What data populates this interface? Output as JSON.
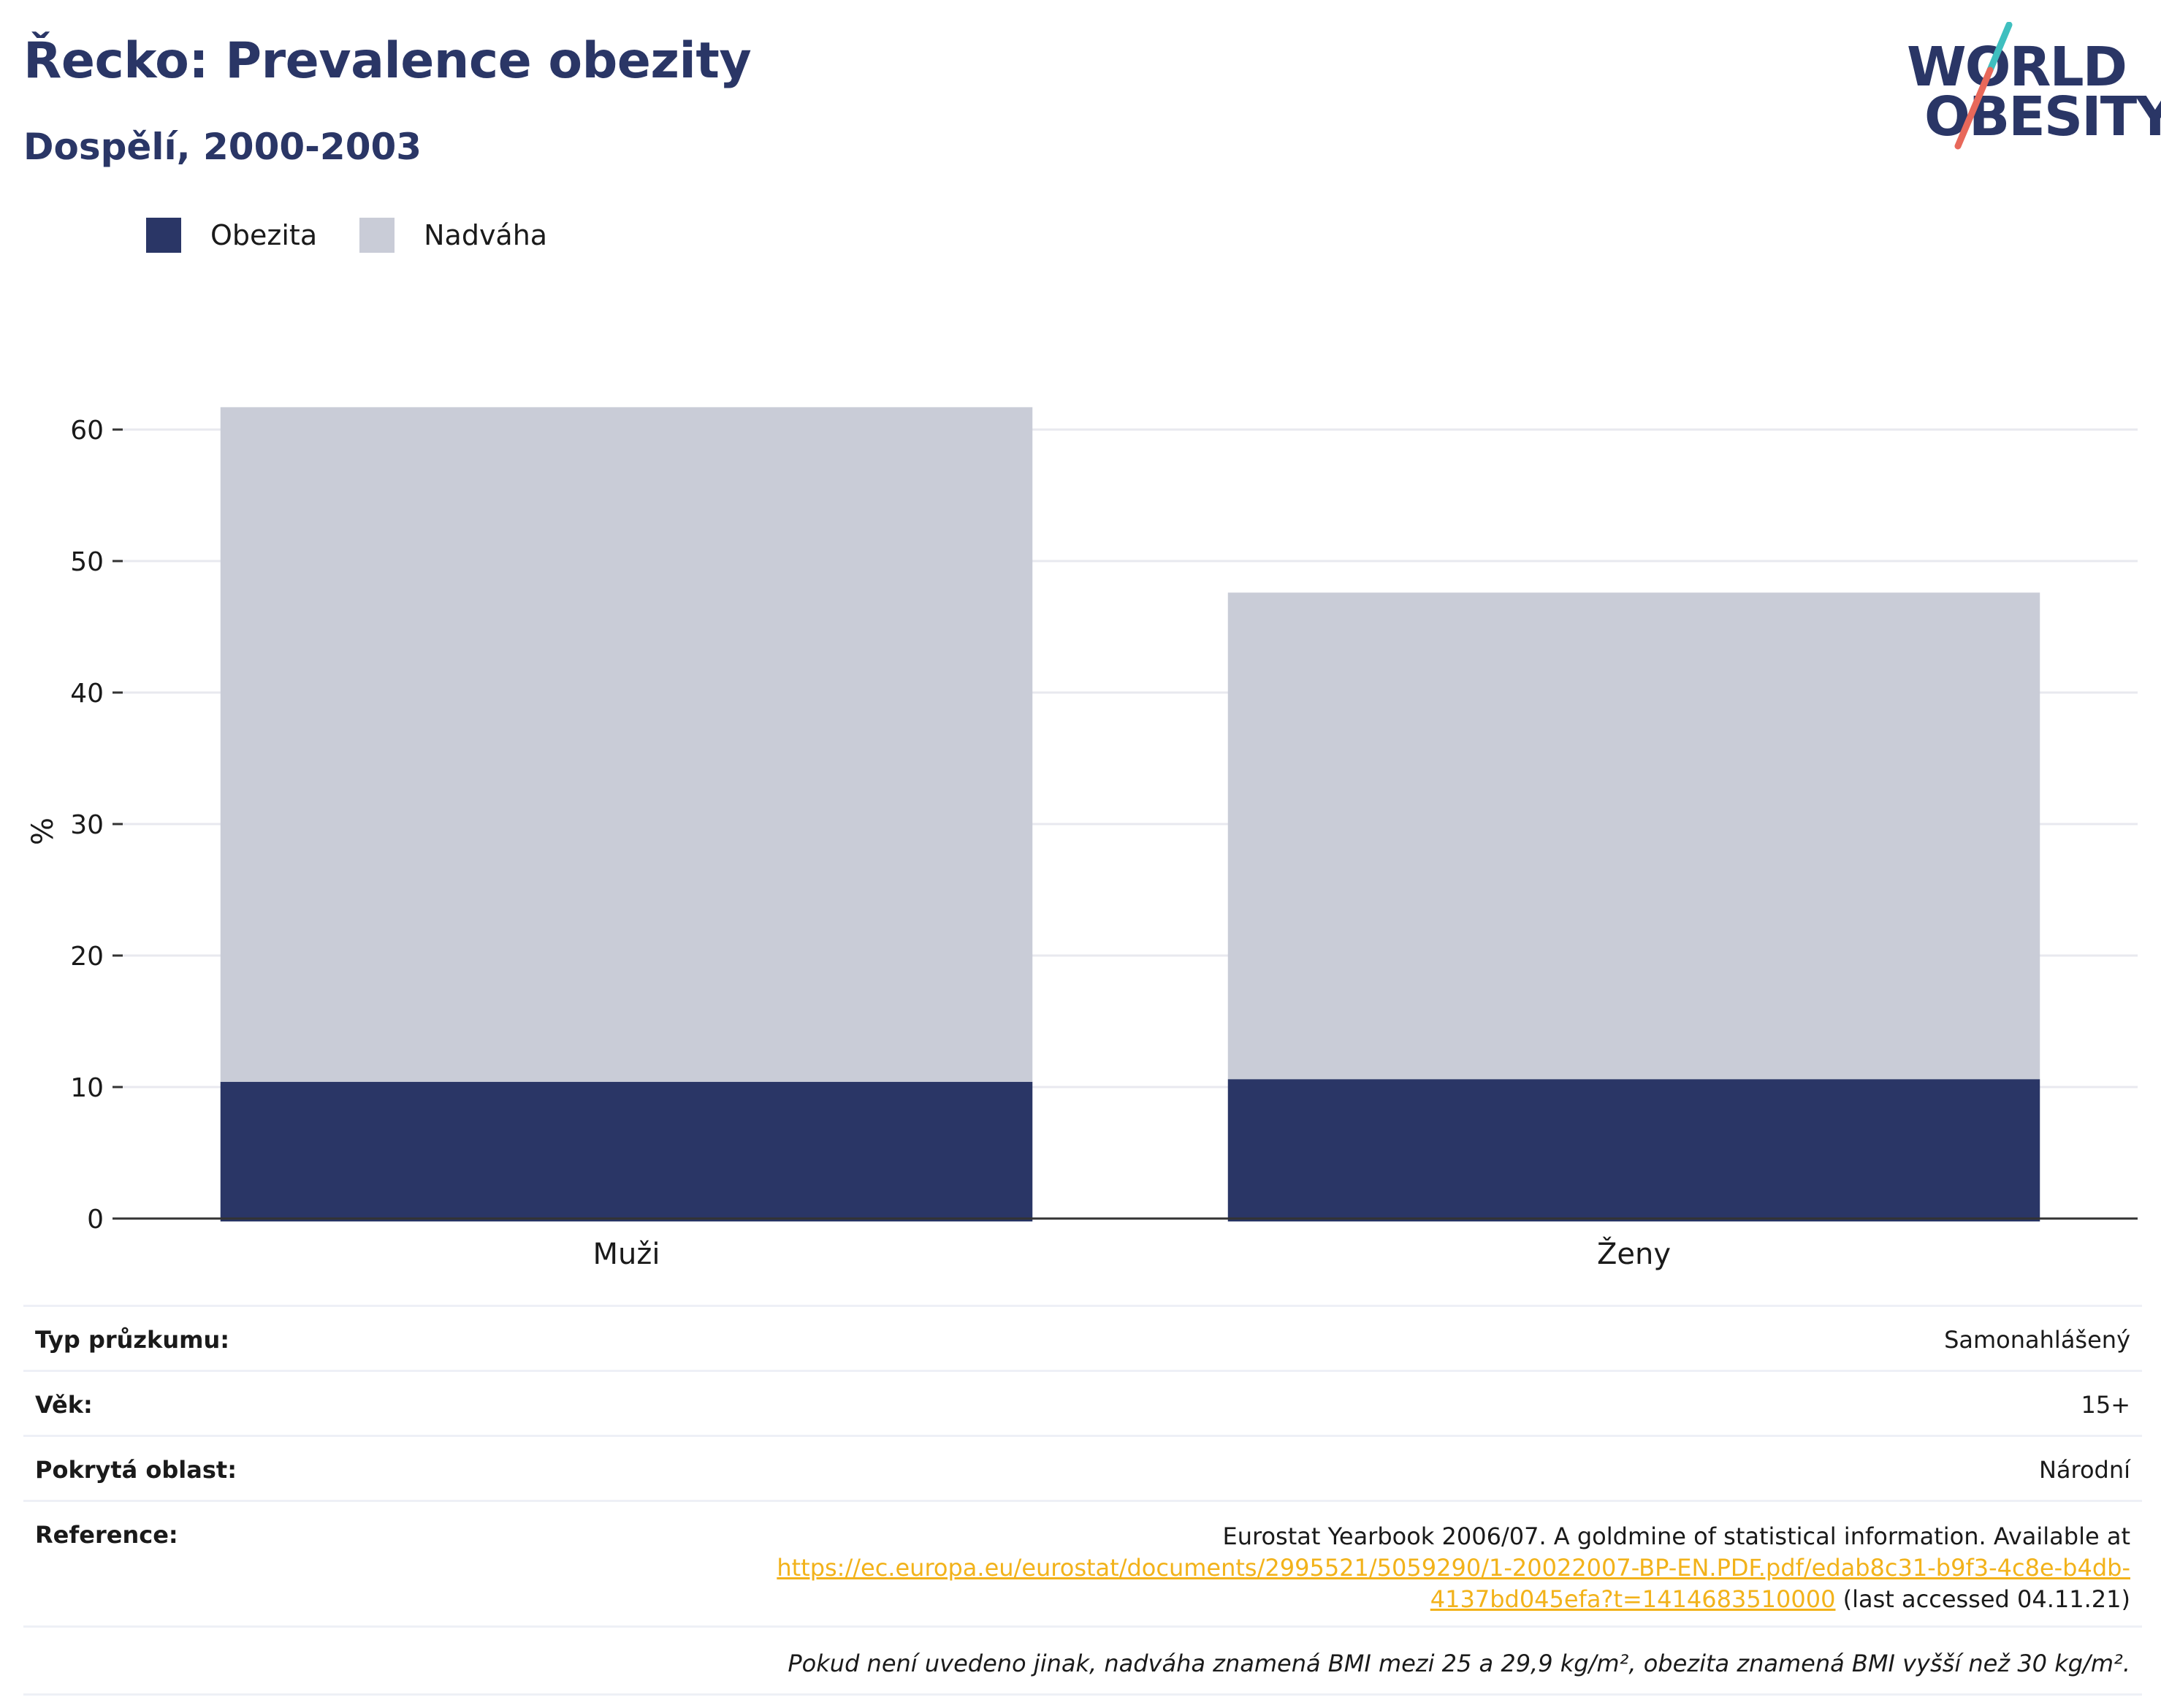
{
  "header": {
    "title": "Řecko: Prevalence obezity",
    "subtitle": "Dospělí, 2000-2003"
  },
  "logo": {
    "line1": "WORLD",
    "line2": "OBESITY",
    "slash_colors": [
      "#3fbfbf",
      "#e8685a"
    ]
  },
  "colors": {
    "obesity": "#2a3666",
    "overweight": "#c9ccd7",
    "grid": "#e8e9ef",
    "axis": "#333333"
  },
  "legend": {
    "items": [
      {
        "label": "Obezita",
        "color": "#2a3666"
      },
      {
        "label": "Nadváha",
        "color": "#c9ccd7"
      }
    ]
  },
  "chart_data": {
    "type": "bar",
    "stacked": true,
    "categories": [
      "Muži",
      "Ženy"
    ],
    "series": [
      {
        "name": "Obezita",
        "values": [
          10.4,
          10.6
        ]
      },
      {
        "name": "Nadváha",
        "values": [
          51.3,
          37.0
        ]
      }
    ],
    "ylabel": "%",
    "ylim": [
      0,
      65
    ],
    "yticks": [
      0,
      10,
      20,
      30,
      40,
      50,
      60
    ],
    "grid": true,
    "legend_position": "top-left"
  },
  "meta": {
    "survey_key": "Typ průzkumu:",
    "survey_val": "Samonahlášený",
    "age_key": "Věk:",
    "age_val": "15+",
    "area_key": "Pokrytá oblast:",
    "area_val": "Národní",
    "ref_key": "Reference:",
    "ref_text": "Eurostat Yearbook 2006/07. A goldmine of statistical information. Available at",
    "ref_link_1": "https://ec.europa.eu/eurostat/documents/2995521/5059290/1-20022007-BP-EN.PDF.pdf/edab8c31-b9f3-4c8e-b4db-",
    "ref_link_2": "4137bd045efa?t=1414683510000",
    "ref_suffix": " (last accessed 04.11.21)",
    "note": "Pokud není uvedeno jinak, nadváha znamená BMI mezi 25 a 29,9 kg/m², obezita znamená BMI vyšší než 30 kg/m²."
  }
}
